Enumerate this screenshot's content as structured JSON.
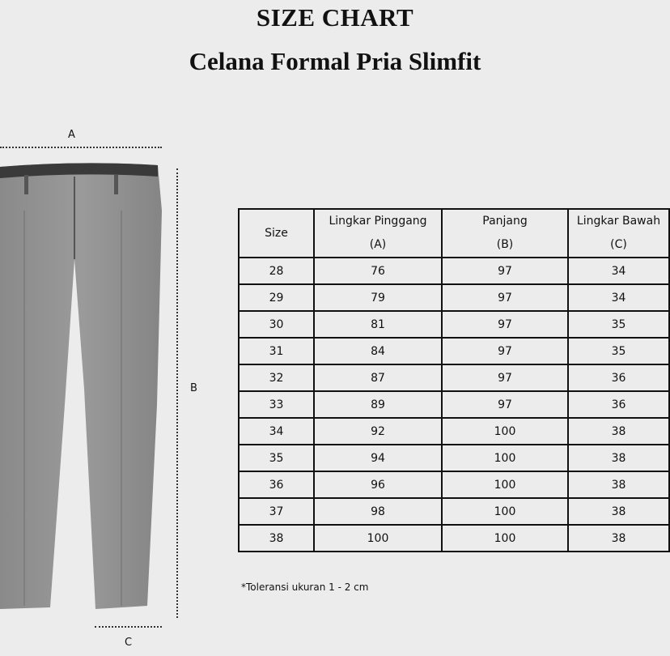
{
  "title": "SIZE CHART",
  "subtitle": "Celana Formal Pria Slimfit",
  "diagram": {
    "label_a": "A",
    "label_b": "B",
    "label_c": "C"
  },
  "table": {
    "headers": [
      {
        "name": "Size",
        "sub": ""
      },
      {
        "name": "Lingkar Pinggang",
        "sub": "(A)"
      },
      {
        "name": "Panjang",
        "sub": "(B)"
      },
      {
        "name": "Lingkar Bawah",
        "sub": "(C)"
      }
    ],
    "rows": [
      [
        "28",
        "76",
        "97",
        "34"
      ],
      [
        "29",
        "79",
        "97",
        "34"
      ],
      [
        "30",
        "81",
        "97",
        "35"
      ],
      [
        "31",
        "84",
        "97",
        "35"
      ],
      [
        "32",
        "87",
        "97",
        "36"
      ],
      [
        "33",
        "89",
        "97",
        "36"
      ],
      [
        "34",
        "92",
        "100",
        "38"
      ],
      [
        "35",
        "94",
        "100",
        "38"
      ],
      [
        "36",
        "96",
        "100",
        "38"
      ],
      [
        "37",
        "98",
        "100",
        "38"
      ],
      [
        "38",
        "100",
        "100",
        "38"
      ]
    ]
  },
  "note": "*Toleransi ukuran 1 - 2 cm"
}
